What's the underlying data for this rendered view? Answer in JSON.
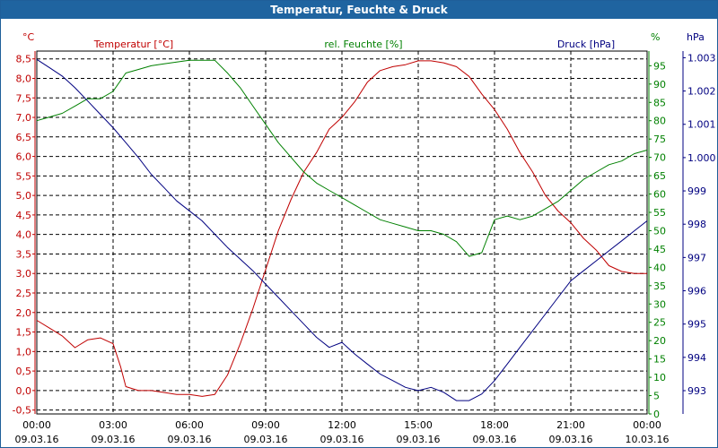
{
  "window": {
    "title": "Temperatur, Feuchte & Druck"
  },
  "chart_data": {
    "type": "line",
    "title": "Temperatur, Feuchte & Druck",
    "grid": true,
    "x": {
      "ticks": [
        {
          "time": "00:00",
          "date": "09.03.16"
        },
        {
          "time": "03:00",
          "date": "09.03.16"
        },
        {
          "time": "06:00",
          "date": "09.03.16"
        },
        {
          "time": "09:00",
          "date": "09.03.16"
        },
        {
          "time": "12:00",
          "date": "09.03.16"
        },
        {
          "time": "15:00",
          "date": "09.03.16"
        },
        {
          "time": "18:00",
          "date": "09.03.16"
        },
        {
          "time": "21:00",
          "date": "09.03.16"
        },
        {
          "time": "00:00",
          "date": "10.03.16"
        }
      ],
      "range": [
        "09.03.16 00:00",
        "10.03.16 00:00"
      ]
    },
    "axes": {
      "temperature": {
        "label": "Temperatur [°C]",
        "unit": "°C",
        "color": "#c00000",
        "ylim": [
          -0.6,
          8.7
        ],
        "ticks": [
          "8,5",
          "8,0",
          "7,5",
          "7,0",
          "6,5",
          "6,0",
          "5,5",
          "5,0",
          "4,5",
          "4,0",
          "3,5",
          "3,0",
          "2,5",
          "2,0",
          "1,5",
          "1,0",
          "0,5",
          "0,0",
          "-0,5"
        ]
      },
      "humidity": {
        "label": "rel. Feuchte [%]",
        "unit": "%",
        "color": "#008000",
        "ylim": [
          0,
          99
        ],
        "ticks": [
          "95",
          "90",
          "85",
          "80",
          "75",
          "70",
          "65",
          "60",
          "55",
          "50",
          "45",
          "40",
          "35",
          "30",
          "25",
          "20",
          "15",
          "10",
          "5",
          "0"
        ]
      },
      "pressure": {
        "label": "Druck [hPa]",
        "unit": "hPa",
        "color": "#000080",
        "ylim": [
          992.3,
          1003.2
        ],
        "ticks": [
          "1.003",
          "1.002",
          "1.001",
          "1.000",
          "999",
          "998",
          "997",
          "996",
          "995",
          "994",
          "993"
        ]
      }
    },
    "series": [
      {
        "name": "Temperatur [°C]",
        "axis": "temperature",
        "color": "#c00000",
        "hours": [
          0,
          0.5,
          1,
          1.5,
          2,
          2.5,
          3,
          3.3,
          3.5,
          4,
          4.5,
          5,
          5.5,
          6,
          6.5,
          7,
          7.5,
          8,
          8.5,
          9,
          9.5,
          10,
          10.5,
          11,
          11.5,
          12,
          12.5,
          13,
          13.5,
          14,
          14.5,
          15,
          15.5,
          16,
          16.5,
          17,
          17.5,
          18,
          18.5,
          19,
          19.5,
          20,
          20.5,
          21,
          21.5,
          22,
          22.5,
          23,
          23.5,
          24
        ],
        "values": [
          1.8,
          1.6,
          1.4,
          1.1,
          1.3,
          1.35,
          1.2,
          0.6,
          0.1,
          0.0,
          0.0,
          -0.05,
          -0.1,
          -0.1,
          -0.15,
          -0.1,
          0.4,
          1.2,
          2.1,
          3.1,
          4.1,
          4.9,
          5.6,
          6.1,
          6.7,
          7.0,
          7.4,
          7.9,
          8.2,
          8.3,
          8.35,
          8.45,
          8.45,
          8.4,
          8.3,
          8.05,
          7.6,
          7.2,
          6.7,
          6.1,
          5.6,
          5.0,
          4.6,
          4.3,
          3.9,
          3.6,
          3.2,
          3.05,
          3.0,
          3.0
        ],
        "description_label": "Temperatur [°C]"
      },
      {
        "name": "rel. Feuchte [%]",
        "axis": "humidity",
        "color": "#008000",
        "hours": [
          0,
          0.5,
          1,
          1.5,
          2,
          2.5,
          3,
          3.5,
          4,
          4.5,
          5,
          5.5,
          6,
          6.5,
          7,
          7.5,
          8,
          8.5,
          9,
          9.5,
          10,
          10.5,
          11,
          11.5,
          12,
          12.5,
          13,
          13.5,
          14,
          14.5,
          15,
          15.5,
          16,
          16.5,
          17,
          17.5,
          18,
          18.5,
          19,
          19.5,
          20,
          20.5,
          21,
          21.5,
          22,
          22.5,
          23,
          23.5,
          24
        ],
        "values": [
          80,
          81,
          82,
          84,
          86,
          86,
          88,
          93,
          94,
          95,
          95.5,
          96,
          96.5,
          96.5,
          96.5,
          93,
          89,
          84,
          79,
          74,
          70,
          66,
          63,
          61,
          59,
          57,
          55,
          53,
          52,
          51,
          50,
          50,
          49,
          47,
          43,
          44,
          53,
          54,
          53,
          54,
          56,
          58,
          61,
          64,
          66,
          68,
          69,
          71,
          72
        ],
        "description_label": "rel. Feuchte [%]"
      },
      {
        "name": "Druck [hPa]",
        "axis": "pressure",
        "color": "#000080",
        "hours": [
          0,
          0.5,
          1,
          1.5,
          2,
          2.5,
          3,
          3.5,
          4,
          4.5,
          5,
          5.5,
          6,
          6.5,
          7,
          7.5,
          8,
          8.5,
          9,
          9.5,
          10,
          10.5,
          11,
          11.5,
          12,
          12.5,
          13,
          13.5,
          14,
          14.5,
          15,
          15.5,
          16,
          16.5,
          17,
          17.5,
          18,
          18.5,
          19,
          19.5,
          20,
          20.5,
          21,
          21.5,
          22,
          22.5,
          23,
          23.5,
          24
        ],
        "values": [
          1002.95,
          1002.7,
          1002.45,
          1002.1,
          1001.7,
          1001.3,
          1000.9,
          1000.45,
          1000.0,
          999.5,
          999.1,
          998.7,
          998.4,
          998.1,
          997.7,
          997.3,
          996.95,
          996.6,
          996.2,
          995.8,
          995.4,
          995.0,
          994.6,
          994.3,
          994.45,
          994.1,
          993.8,
          993.5,
          993.3,
          993.1,
          993.0,
          993.1,
          992.95,
          992.7,
          992.7,
          992.9,
          993.3,
          993.8,
          994.3,
          994.8,
          995.3,
          995.8,
          996.3,
          996.6,
          996.9,
          997.2,
          997.5,
          997.8,
          998.1
        ],
        "description_label": "Druck [hPa]"
      }
    ]
  }
}
